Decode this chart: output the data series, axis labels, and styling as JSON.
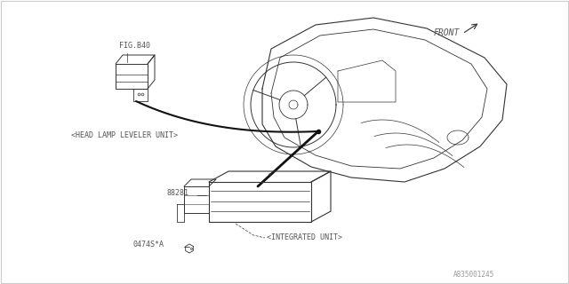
{
  "bg_color": "#ffffff",
  "border_color": "#cccccc",
  "line_color": "#333333",
  "text_color": "#555555",
  "fig_label": "FIG.B40",
  "front_label": "FRONT",
  "head_lamp_label": "<HEAD LAMP LEVELER UNIT>",
  "integrated_label": "<INTEGRATED UNIT>",
  "part_number_1": "88281",
  "part_number_2": "0474S*A",
  "diagram_id": "A835001245",
  "label_fontsize": 6.0,
  "small_fontsize": 5.5
}
